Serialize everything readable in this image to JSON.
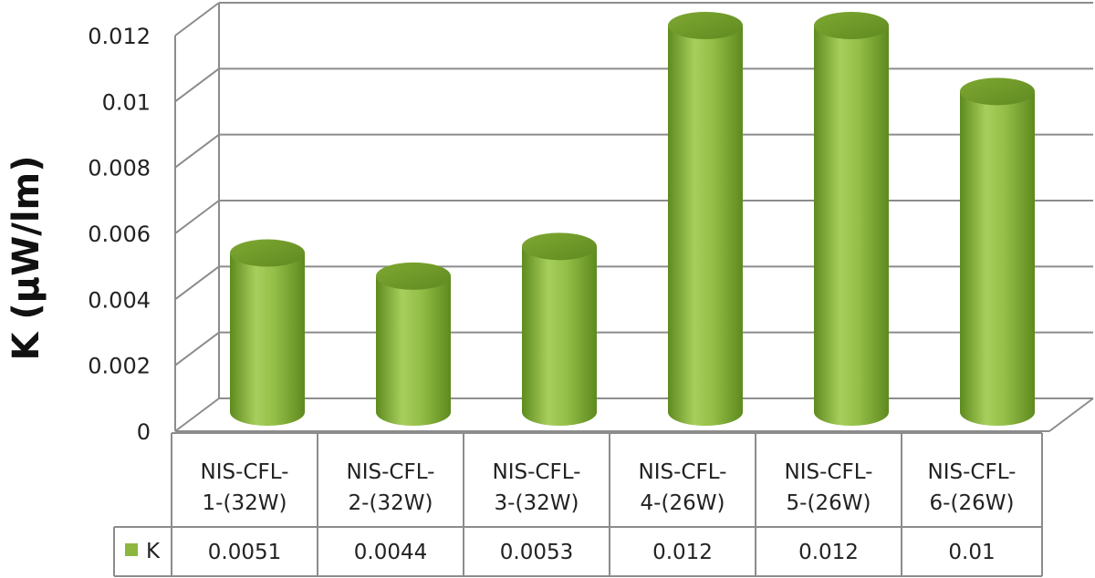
{
  "chart_data": {
    "type": "bar",
    "style": "3d-cylinder",
    "title": "",
    "xlabel": "",
    "ylabel": "K (µW/lm)",
    "ylim": [
      0,
      0.012
    ],
    "ytick_labels": [
      "0",
      "0.002",
      "0.004",
      "0.006",
      "0.008",
      "0.01",
      "0.012"
    ],
    "yticks": [
      0,
      0.002,
      0.004,
      0.006,
      0.008,
      0.01,
      0.012
    ],
    "categories": [
      [
        "NIS-CFL-",
        "1-(32W)"
      ],
      [
        "NIS-CFL-",
        "2-(32W)"
      ],
      [
        "NIS-CFL-",
        "3-(32W)"
      ],
      [
        "NIS-CFL-",
        "4-(26W)"
      ],
      [
        "NIS-CFL-",
        "5-(26W)"
      ],
      [
        "NIS-CFL-",
        "6-(26W)"
      ]
    ],
    "series": [
      {
        "name": "K",
        "color": "#8DB63F",
        "values": [
          0.0051,
          0.0044,
          0.0053,
          0.012,
          0.012,
          0.01
        ],
        "value_labels": [
          "0.0051",
          "0.0044",
          "0.0053",
          "0.012",
          "0.012",
          "0.01"
        ]
      }
    ],
    "grid": true,
    "legend": "data-table-left",
    "data_table": true
  }
}
